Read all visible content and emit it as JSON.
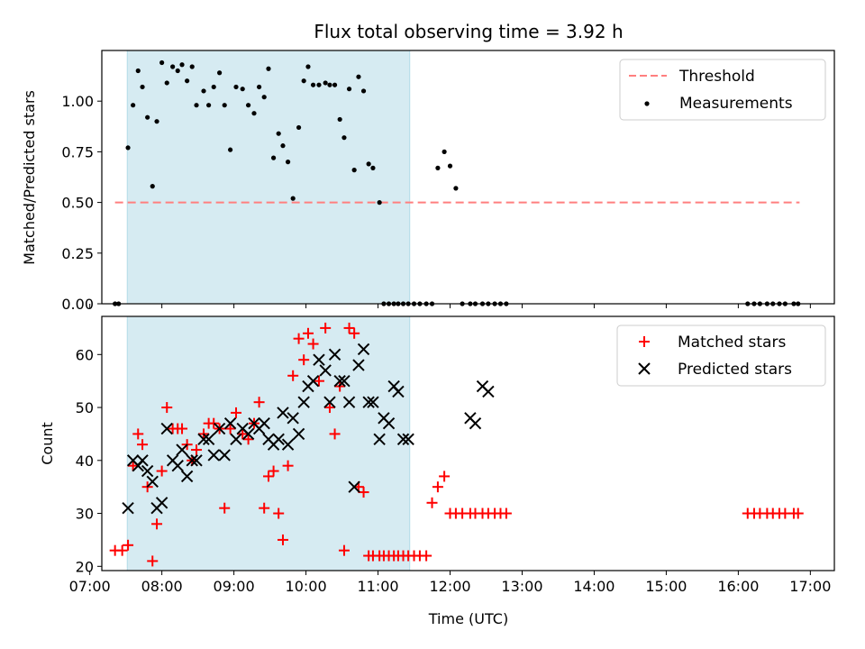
{
  "chart_data": [
    {
      "type": "scatter",
      "title": "Flux total observing time = 3.92 h",
      "xlabel": "",
      "ylabel": "Matched/Predicted stars",
      "xlim": [
        7.1667,
        17.3333
      ],
      "ylim": [
        0.0,
        1.25
      ],
      "yticks": [
        0.0,
        0.25,
        0.5,
        0.75,
        1.0
      ],
      "ytick_labels": [
        "0.00",
        "0.25",
        "0.50",
        "0.75",
        "1.00"
      ],
      "shaded_span": [
        7.52,
        11.44
      ],
      "shade_color": "#add8e6",
      "threshold": {
        "name": "Threshold",
        "y": 0.5,
        "x": [
          7.35,
          16.85
        ],
        "color": "#ff7f7f"
      },
      "legend": {
        "location": "top-right",
        "entries": [
          "Threshold",
          "Measurements"
        ]
      },
      "series": [
        {
          "name": "Measurements",
          "color": "#000000",
          "marker": "dot",
          "x": [
            7.35,
            7.4,
            7.53,
            7.6,
            7.67,
            7.73,
            7.8,
            7.87,
            7.93,
            8.0,
            8.07,
            8.15,
            8.22,
            8.28,
            8.35,
            8.42,
            8.48,
            8.58,
            8.65,
            8.72,
            8.8,
            8.87,
            8.95,
            9.03,
            9.12,
            9.2,
            9.28,
            9.35,
            9.42,
            9.48,
            9.55,
            9.62,
            9.68,
            9.75,
            9.82,
            9.9,
            9.97,
            10.03,
            10.1,
            10.18,
            10.27,
            10.33,
            10.4,
            10.47,
            10.53,
            10.6,
            10.67,
            10.73,
            10.8,
            10.87,
            10.93,
            11.02,
            11.08,
            11.15,
            11.22,
            11.28,
            11.35,
            11.42,
            11.5,
            11.58,
            11.67,
            11.75,
            11.83,
            11.92,
            12.0,
            12.08,
            12.17,
            12.28,
            12.35,
            12.45,
            12.53,
            12.62,
            12.7,
            12.78,
            16.13,
            16.22,
            16.3,
            16.4,
            16.48,
            16.57,
            16.65,
            16.77,
            16.83
          ],
          "y": [
            0.0,
            0.0,
            0.77,
            0.98,
            1.15,
            1.07,
            0.92,
            0.58,
            0.9,
            1.19,
            1.09,
            1.17,
            1.15,
            1.18,
            1.1,
            1.17,
            0.98,
            1.05,
            0.98,
            1.07,
            1.14,
            0.98,
            0.76,
            1.07,
            1.06,
            0.98,
            0.94,
            1.07,
            1.02,
            1.16,
            0.72,
            0.84,
            0.78,
            0.7,
            0.52,
            0.87,
            1.1,
            1.17,
            1.08,
            1.08,
            1.09,
            1.08,
            1.08,
            0.91,
            0.82,
            1.06,
            0.66,
            1.12,
            1.05,
            0.69,
            0.67,
            0.5,
            0.0,
            0.0,
            0.0,
            0.0,
            0.0,
            0.0,
            0.0,
            0.0,
            0.0,
            0.0,
            0.67,
            0.75,
            0.68,
            0.57,
            0.0,
            0.0,
            0.0,
            0.0,
            0.0,
            0.0,
            0.0,
            0.0,
            0.0,
            0.0,
            0.0,
            0.0,
            0.0,
            0.0,
            0.0,
            0.0,
            0.0
          ]
        }
      ]
    },
    {
      "type": "scatter",
      "title": "",
      "xlabel": "Time (UTC)",
      "ylabel": "Count",
      "xlim": [
        7.1667,
        17.3333
      ],
      "ylim": [
        19.2,
        67.2
      ],
      "yticks": [
        20,
        30,
        40,
        50,
        60
      ],
      "ytick_labels": [
        "20",
        "30",
        "40",
        "50",
        "60"
      ],
      "xticks": [
        7,
        8,
        9,
        10,
        11,
        12,
        13,
        14,
        15,
        16,
        17
      ],
      "xtick_labels": [
        "07:00",
        "08:00",
        "09:00",
        "10:00",
        "11:00",
        "12:00",
        "13:00",
        "14:00",
        "15:00",
        "16:00",
        "17:00"
      ],
      "shaded_span": [
        7.52,
        11.44
      ],
      "shade_color": "#add8e6",
      "legend": {
        "location": "top-right",
        "entries": [
          "Matched stars",
          "Predicted stars"
        ]
      },
      "series": [
        {
          "name": "Matched stars",
          "color": "#ff0000",
          "marker": "plus",
          "x": [
            7.35,
            7.45,
            7.53,
            7.6,
            7.67,
            7.73,
            7.8,
            7.87,
            7.93,
            8.0,
            8.07,
            8.15,
            8.22,
            8.28,
            8.35,
            8.42,
            8.48,
            8.58,
            8.65,
            8.72,
            8.8,
            8.87,
            8.95,
            9.03,
            9.12,
            9.2,
            9.28,
            9.35,
            9.42,
            9.48,
            9.55,
            9.62,
            9.68,
            9.75,
            9.82,
            9.9,
            9.97,
            10.03,
            10.1,
            10.18,
            10.27,
            10.33,
            10.4,
            10.47,
            10.53,
            10.6,
            10.67,
            10.73,
            10.8,
            10.87,
            10.93,
            11.02,
            11.08,
            11.15,
            11.22,
            11.28,
            11.35,
            11.42,
            11.5,
            11.58,
            11.67,
            11.75,
            11.83,
            11.92,
            12.0,
            12.08,
            12.17,
            12.28,
            12.35,
            12.45,
            12.53,
            12.62,
            12.7,
            12.78,
            16.13,
            16.22,
            16.3,
            16.4,
            16.48,
            16.57,
            16.65,
            16.77,
            16.83
          ],
          "y": [
            23,
            23,
            24,
            39,
            45,
            43,
            35,
            21,
            28,
            38,
            50,
            46,
            46,
            46,
            43,
            40,
            42,
            45,
            47,
            47,
            46,
            31,
            46,
            49,
            45,
            44,
            47,
            51,
            31,
            37,
            38,
            30,
            25,
            39,
            56,
            63,
            59,
            64,
            62,
            55,
            65,
            50,
            45,
            54,
            23,
            65,
            64,
            35,
            34,
            22,
            22,
            22,
            22,
            22,
            22,
            22,
            22,
            22,
            22,
            22,
            22,
            32,
            35,
            37,
            30,
            30,
            30,
            30,
            30,
            30,
            30,
            30,
            30,
            30,
            30,
            30,
            30,
            30,
            30,
            30,
            30,
            30,
            30
          ]
        },
        {
          "name": "Predicted stars",
          "color": "#000000",
          "marker": "x",
          "x": [
            7.53,
            7.6,
            7.67,
            7.73,
            7.8,
            7.87,
            7.93,
            8.0,
            8.07,
            8.15,
            8.22,
            8.28,
            8.35,
            8.42,
            8.48,
            8.58,
            8.65,
            8.72,
            8.8,
            8.87,
            8.95,
            9.03,
            9.12,
            9.2,
            9.28,
            9.35,
            9.42,
            9.48,
            9.55,
            9.62,
            9.68,
            9.75,
            9.82,
            9.9,
            9.97,
            10.03,
            10.1,
            10.18,
            10.27,
            10.33,
            10.4,
            10.47,
            10.53,
            10.6,
            10.67,
            10.73,
            10.8,
            10.87,
            10.93,
            11.02,
            11.08,
            11.15,
            11.22,
            11.28,
            11.35,
            11.42,
            12.28,
            12.35,
            12.45,
            12.53
          ],
          "y": [
            31,
            40,
            39,
            40,
            38,
            36,
            31,
            32,
            46,
            40,
            39,
            42,
            37,
            40,
            40,
            44,
            44,
            41,
            46,
            41,
            47,
            44,
            46,
            45,
            47,
            46,
            47,
            44,
            43,
            44,
            49,
            43,
            48,
            45,
            51,
            54,
            55,
            59,
            57,
            51,
            60,
            55,
            55,
            51,
            35,
            58,
            61,
            51,
            51,
            44,
            48,
            47,
            54,
            53,
            44,
            44,
            48,
            47,
            54,
            53
          ]
        }
      ]
    }
  ]
}
